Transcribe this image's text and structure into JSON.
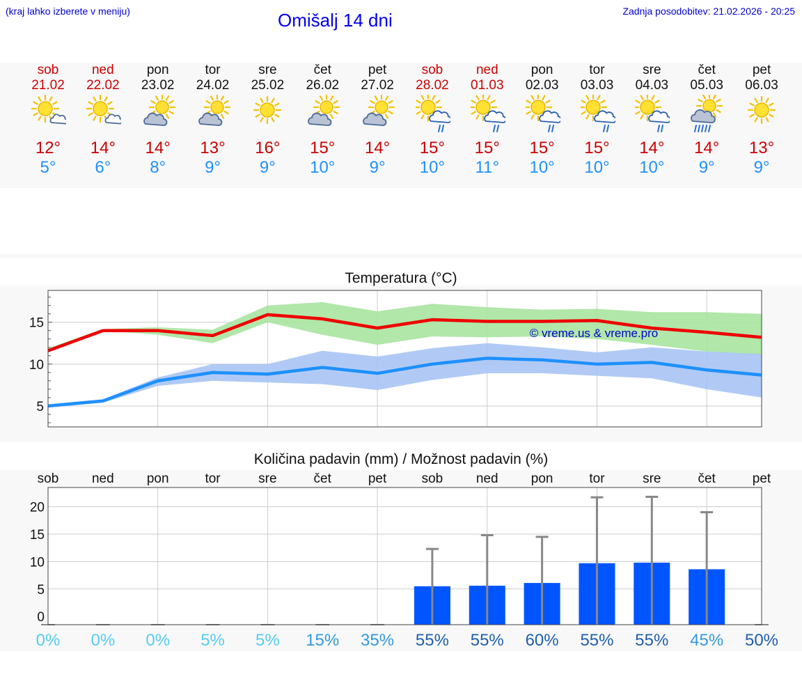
{
  "header": {
    "hint": "(kraj lahko izberete v meniju)",
    "title": "Omišalj 14 dni",
    "updated": "Zadnja posodobitev: 21.02.2026 - 20:25"
  },
  "days": [
    {
      "name": "sob",
      "date": "21.02",
      "weekend": true,
      "icon": "sun-cloud-icon",
      "tmax": "12°",
      "tmin": "5°"
    },
    {
      "name": "ned",
      "date": "22.02",
      "weekend": true,
      "icon": "sun-cloud-icon",
      "tmax": "14°",
      "tmin": "6°"
    },
    {
      "name": "pon",
      "date": "23.02",
      "weekend": false,
      "icon": "cloud-sun-icon",
      "tmax": "14°",
      "tmin": "8°"
    },
    {
      "name": "tor",
      "date": "24.02",
      "weekend": false,
      "icon": "cloud-sun-icon",
      "tmax": "13°",
      "tmin": "9°"
    },
    {
      "name": "sre",
      "date": "25.02",
      "weekend": false,
      "icon": "sun-icon",
      "tmax": "16°",
      "tmin": "9°"
    },
    {
      "name": "čet",
      "date": "26.02",
      "weekend": false,
      "icon": "cloud-sun-icon",
      "tmax": "15°",
      "tmin": "10°"
    },
    {
      "name": "pet",
      "date": "27.02",
      "weekend": false,
      "icon": "cloud-sun-icon",
      "tmax": "14°",
      "tmin": "9°"
    },
    {
      "name": "sob",
      "date": "28.02",
      "weekend": true,
      "icon": "sun-rain-icon",
      "tmax": "15°",
      "tmin": "10°"
    },
    {
      "name": "ned",
      "date": "01.03",
      "weekend": true,
      "icon": "sun-rain-icon",
      "tmax": "15°",
      "tmin": "11°"
    },
    {
      "name": "pon",
      "date": "02.03",
      "weekend": false,
      "icon": "sun-rain-icon",
      "tmax": "15°",
      "tmin": "10°"
    },
    {
      "name": "tor",
      "date": "03.03",
      "weekend": false,
      "icon": "sun-rain-icon",
      "tmax": "15°",
      "tmin": "10°"
    },
    {
      "name": "sre",
      "date": "04.03",
      "weekend": false,
      "icon": "sun-rain-icon",
      "tmax": "14°",
      "tmin": "10°"
    },
    {
      "name": "čet",
      "date": "05.03",
      "weekend": false,
      "icon": "sun-heavy-rain-icon",
      "tmax": "14°",
      "tmin": "9°"
    },
    {
      "name": "pet",
      "date": "06.03",
      "weekend": false,
      "icon": "sun-icon",
      "tmax": "13°",
      "tmin": "9°"
    }
  ],
  "colors": {
    "weekend": "#cc0000",
    "tmax_line": "#ee0000",
    "tmin_line": "#1e90ff",
    "tmax_band": "#a8e4a0",
    "tmin_band": "#a8c4f4",
    "precip_bar": "#0055ff",
    "watermark": "#0000cc"
  },
  "chart_data": [
    {
      "type": "line",
      "title": "Temperatura (°C)",
      "watermark": "© vreme.us & vreme.pro",
      "x_count": 14,
      "ylim": [
        2.5,
        18.8
      ],
      "yticks": [
        5,
        10,
        15
      ],
      "series": [
        {
          "name": "tmax",
          "values": [
            11.6,
            14.0,
            14.0,
            13.4,
            15.9,
            15.4,
            14.3,
            15.3,
            15.1,
            15.1,
            15.2,
            14.3,
            13.8,
            13.2
          ]
        },
        {
          "name": "tmin",
          "values": [
            5.0,
            5.6,
            8.0,
            9.0,
            8.8,
            9.6,
            8.9,
            10.0,
            10.7,
            10.5,
            10.0,
            10.2,
            9.3,
            8.7
          ]
        }
      ],
      "bands": [
        {
          "name": "tmax_range",
          "low": [
            11.4,
            14.0,
            13.5,
            12.5,
            15.0,
            13.5,
            12.3,
            13.3,
            13.2,
            13.3,
            13.0,
            12.3,
            11.5,
            11.0
          ],
          "high": [
            11.9,
            14.2,
            14.4,
            14.1,
            17.0,
            17.4,
            16.3,
            17.2,
            16.8,
            16.5,
            16.6,
            16.2,
            16.2,
            16.0
          ]
        },
        {
          "name": "tmin_range",
          "low": [
            4.8,
            5.4,
            7.4,
            8.0,
            7.8,
            7.6,
            6.9,
            8.1,
            8.9,
            8.9,
            8.6,
            8.3,
            7.0,
            6.0
          ],
          "high": [
            5.2,
            5.8,
            8.4,
            10.0,
            10.0,
            11.6,
            10.9,
            11.9,
            12.5,
            12.0,
            11.4,
            12.0,
            11.5,
            11.2
          ]
        }
      ]
    },
    {
      "type": "bar",
      "title": "Količina padavin (mm) / Možnost padavin (%)",
      "categories": [
        "sob",
        "ned",
        "pon",
        "tor",
        "sre",
        "čet",
        "pet",
        "sob",
        "ned",
        "pon",
        "tor",
        "sre",
        "čet",
        "pet"
      ],
      "ylim": [
        -1.5,
        23.5
      ],
      "yticks": [
        0,
        5,
        10,
        15,
        20
      ],
      "values": [
        0,
        0,
        0,
        0,
        0,
        0,
        0,
        5.5,
        5.6,
        6.1,
        9.7,
        9.8,
        8.6,
        0
      ],
      "error_high": [
        0,
        0,
        0,
        0,
        0,
        0,
        0,
        12.3,
        14.8,
        14.5,
        21.7,
        21.8,
        19.0,
        0
      ],
      "probability": [
        "0%",
        "0%",
        "0%",
        "5%",
        "5%",
        "15%",
        "35%",
        "55%",
        "55%",
        "60%",
        "55%",
        "55%",
        "45%",
        "50%"
      ],
      "probability_colors": [
        "#55ccee",
        "#55ccee",
        "#55ccee",
        "#55ccee",
        "#55ccee",
        "#3399dd",
        "#3399dd",
        "#1f5faa",
        "#1f5faa",
        "#1f5faa",
        "#1f5faa",
        "#1f5faa",
        "#3399dd",
        "#1f5faa"
      ]
    }
  ]
}
